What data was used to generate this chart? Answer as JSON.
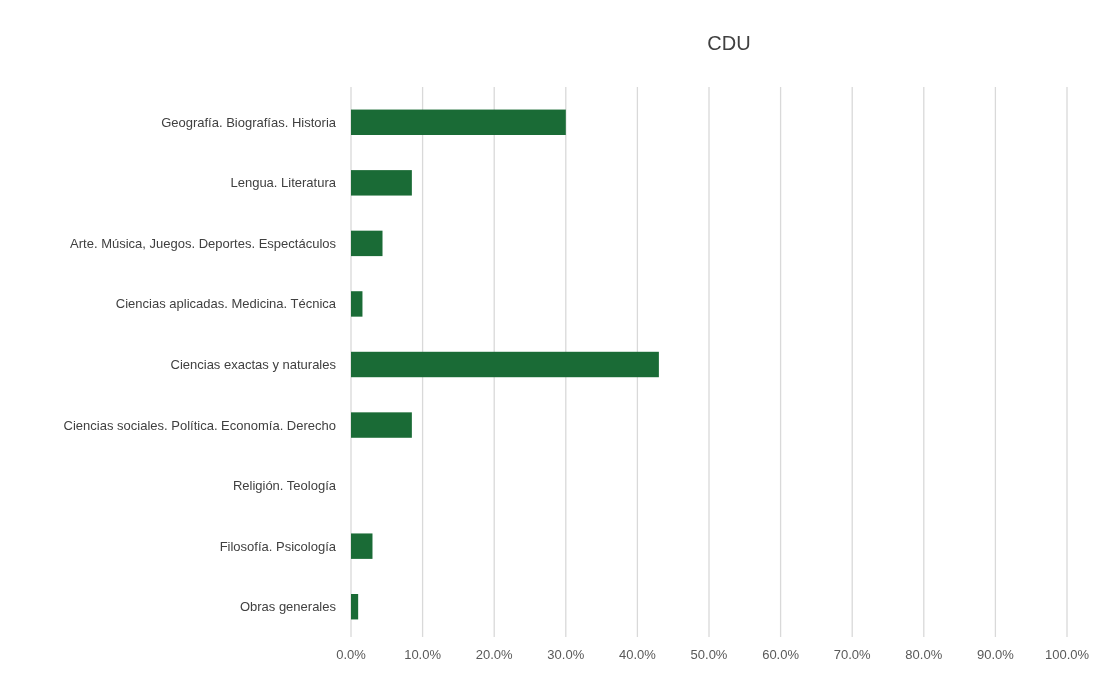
{
  "chart_data": {
    "type": "bar",
    "orientation": "horizontal",
    "title": "CDU",
    "categories": [
      "Geografía. Biografías. Historia",
      "Lengua. Literatura",
      "Arte. Música, Juegos. Deportes. Espectáculos",
      "Ciencias aplicadas. Medicina. Técnica",
      "Ciencias exactas y naturales",
      "Ciencias sociales. Política. Economía. Derecho",
      "Religión. Teología",
      "Filosofía. Psicología",
      "Obras generales"
    ],
    "values": [
      30.0,
      8.5,
      4.4,
      1.6,
      43.0,
      8.5,
      0,
      3.0,
      1.0
    ],
    "color": "#1a6b36",
    "xlim": [
      0,
      100
    ],
    "xticks": [
      {
        "value": 0,
        "label": "0.0%"
      },
      {
        "value": 10,
        "label": "10.0%"
      },
      {
        "value": 20,
        "label": "20.0%"
      },
      {
        "value": 30,
        "label": "30.0%"
      },
      {
        "value": 40,
        "label": "40.0%"
      },
      {
        "value": 50,
        "label": "50.0%"
      },
      {
        "value": 60,
        "label": "60.0%"
      },
      {
        "value": 70,
        "label": "70.0%"
      },
      {
        "value": 80,
        "label": "80.0%"
      },
      {
        "value": 90,
        "label": "90.0%"
      },
      {
        "value": 100,
        "label": "100.0%"
      }
    ],
    "grid": "x"
  }
}
